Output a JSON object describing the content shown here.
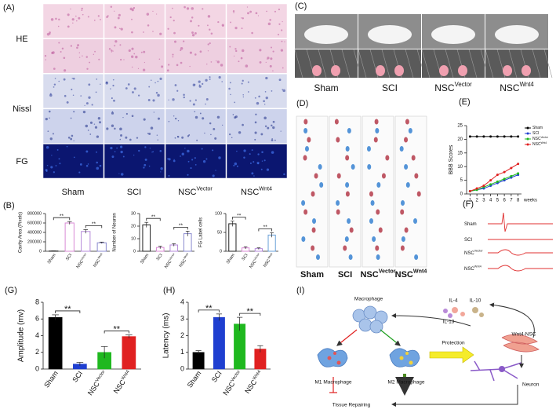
{
  "panel_labels": [
    "(A)",
    "(B)",
    "(C)",
    "(D)",
    "(E)",
    "(F)",
    "(G)",
    "(H)",
    "(I)"
  ],
  "images": {
    "A": {
      "rows": [
        "HE",
        "Nissl",
        "FG"
      ],
      "columns": [
        {
          "text": "Sham"
        },
        {
          "text": "SCI"
        },
        {
          "text": "NSC",
          "sup": "Vector"
        },
        {
          "text": "NSC",
          "sup": "Wnt4"
        }
      ]
    },
    "C": {
      "columns": [
        {
          "text": "Sham"
        },
        {
          "text": "SCI"
        },
        {
          "text": "NSC",
          "sup": "Vector"
        },
        {
          "text": "NSC",
          "sup": "Wnt4"
        }
      ]
    },
    "D": {
      "columns": [
        {
          "text": "Sham"
        },
        {
          "text": "SCI"
        },
        {
          "text": "NSC",
          "sup": "Vector"
        },
        {
          "text": "NSC",
          "sup": "Wnt4"
        }
      ]
    },
    "F": {
      "rows": [
        {
          "text": "Sham"
        },
        {
          "text": "SCI"
        },
        {
          "text": "NSC",
          "sup": "Vector"
        },
        {
          "text": "NSC",
          "sup": "Wnt4"
        }
      ]
    }
  },
  "diagram": {
    "nodes": [
      "Macrophage",
      "IL-4",
      "IL-10",
      "IL-13",
      "Protection",
      "Wnt4-NSC",
      "M1 Macrophage",
      "M2 Macrophage",
      "Neuron",
      "Tissue Repairing"
    ]
  },
  "chart_data": [
    {
      "type": "bar",
      "bar_style": "outline",
      "ylabel": "Cavity Area (Pixels)",
      "categories": [
        "Sham",
        "SCI",
        "NSC",
        "NSC"
      ],
      "category_sup": [
        null,
        null,
        "Vector",
        "Wnt4"
      ],
      "values": [
        5000,
        600000,
        420000,
        180000
      ],
      "errors": [
        3000,
        30000,
        40000,
        15000
      ],
      "colors": [
        "#222222",
        "#d98ad6",
        "#b58ad9",
        "#8a8ad0"
      ],
      "ylim": [
        0,
        800000
      ],
      "yticks": [
        0,
        200000,
        400000,
        600000,
        800000
      ],
      "annotations": [
        "**",
        "**"
      ]
    },
    {
      "type": "bar",
      "bar_style": "outline",
      "ylabel": "Number of Neuron",
      "categories": [
        "Sham",
        "SCI",
        "NSC",
        "NSC"
      ],
      "category_sup": [
        null,
        null,
        "Vector",
        "Wnt4"
      ],
      "values": [
        21,
        3,
        5,
        14
      ],
      "errors": [
        2,
        1,
        1,
        2
      ],
      "colors": [
        "#222222",
        "#d98ad6",
        "#b58ad9",
        "#8a8ad0"
      ],
      "ylim": [
        0,
        30
      ],
      "yticks": [
        0,
        10,
        20,
        30
      ],
      "annotations": [
        "**",
        "**"
      ]
    },
    {
      "type": "bar",
      "bar_style": "outline",
      "ylabel": "FG Label cells",
      "categories": [
        "Sham",
        "SCI",
        "NSC",
        "NSC"
      ],
      "category_sup": [
        null,
        null,
        "Vector",
        "Wnt4"
      ],
      "values": [
        73,
        9,
        7,
        43
      ],
      "errors": [
        7,
        3,
        2,
        6
      ],
      "colors": [
        "#222222",
        "#d98ad6",
        "#b58ad9",
        "#6aa0d8"
      ],
      "ylim": [
        0,
        100
      ],
      "yticks": [
        0,
        50,
        100
      ],
      "annotations": [
        "**",
        "**"
      ]
    },
    {
      "type": "line",
      "ylabel": "BBB Scores",
      "xlabel": "weeks",
      "x": [
        1,
        2,
        3,
        4,
        5,
        6,
        7,
        8
      ],
      "xlim": [
        0.5,
        8.5
      ],
      "xticks": [
        1,
        2,
        3,
        4,
        5,
        6,
        7,
        8
      ],
      "ylim": [
        0,
        25
      ],
      "yticks": [
        0,
        5,
        10,
        15,
        20,
        25
      ],
      "legend": "right",
      "series": [
        {
          "name": "Sham",
          "color": "#000000",
          "values": [
            21,
            21,
            21,
            21,
            21,
            21,
            21,
            21
          ]
        },
        {
          "name": "SCI",
          "color": "#1f3fd0",
          "values": [
            1,
            1.5,
            2,
            3,
            4,
            5,
            6,
            7
          ]
        },
        {
          "name": "NSC",
          "sup": "Vector",
          "color": "#1fb81f",
          "values": [
            1,
            1.5,
            2.5,
            3.5,
            4.5,
            5.5,
            6.5,
            7.5
          ]
        },
        {
          "name": "NSC",
          "sup": "Wnt4",
          "color": "#e02020",
          "values": [
            1,
            2,
            3,
            5,
            7,
            8,
            9.5,
            11
          ]
        }
      ]
    },
    {
      "type": "bar",
      "bar_style": "filled",
      "ylabel": "Amplitude (mv)",
      "categories": [
        "Sham",
        "SCI",
        "NSC",
        "NSC"
      ],
      "category_sup": [
        null,
        null,
        "Vector",
        "Wnt4"
      ],
      "values": [
        6.2,
        0.6,
        2.0,
        3.9
      ],
      "errors": [
        0.3,
        0.2,
        0.7,
        0.2
      ],
      "colors": [
        "#000000",
        "#1f3fd0",
        "#1fb81f",
        "#e02020"
      ],
      "ylim": [
        0,
        8
      ],
      "yticks": [
        0,
        2,
        4,
        6,
        8
      ],
      "annotations": [
        "**",
        "**"
      ]
    },
    {
      "type": "bar",
      "bar_style": "filled",
      "ylabel": "Latency (ms)",
      "categories": [
        "Sham",
        "SCI",
        "NSC",
        "NSC"
      ],
      "category_sup": [
        null,
        null,
        "Vector",
        "Wnt4"
      ],
      "values": [
        1.0,
        3.1,
        2.7,
        1.2
      ],
      "errors": [
        0.1,
        0.2,
        0.4,
        0.2
      ],
      "colors": [
        "#000000",
        "#1f3fd0",
        "#1fb81f",
        "#e02020"
      ],
      "ylim": [
        0,
        4
      ],
      "yticks": [
        0,
        1,
        2,
        3,
        4
      ],
      "annotations": [
        "**",
        "**"
      ]
    }
  ]
}
